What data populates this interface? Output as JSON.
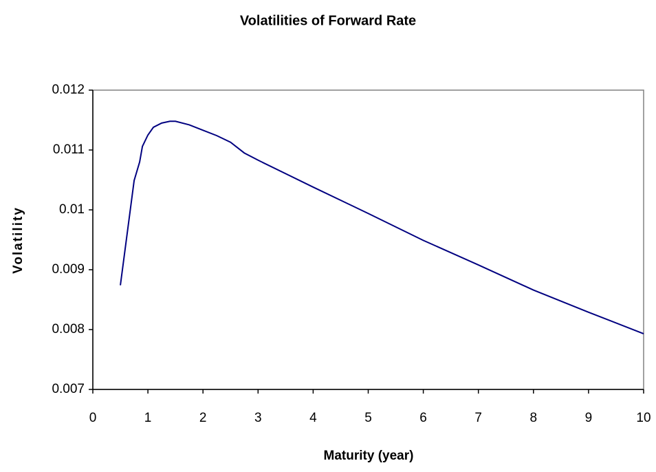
{
  "chart_data": {
    "type": "line",
    "title": "Volatilities of Forward Rate",
    "x_label": "Maturity (year)",
    "y_label": "Volatility",
    "x": [
      0.5,
      0.75,
      0.85,
      0.9,
      1.0,
      1.1,
      1.25,
      1.4,
      1.5,
      1.75,
      2,
      2.25,
      2.5,
      2.75,
      3,
      4,
      5,
      6,
      7,
      8,
      9,
      10
    ],
    "values": [
      0.00874,
      0.01049,
      0.0108,
      0.01106,
      0.01125,
      0.01138,
      0.01145,
      0.01148,
      0.01148,
      0.01142,
      0.01133,
      0.01124,
      0.01113,
      0.01095,
      0.01083,
      0.01038,
      0.00994,
      0.00949,
      0.00908,
      0.00866,
      0.00829,
      0.00793
    ],
    "color": "#000080",
    "xlim": [
      0,
      10
    ],
    "xticks": [
      0,
      1,
      2,
      3,
      4,
      5,
      6,
      7,
      8,
      9,
      10
    ],
    "ylim": [
      0.007,
      0.012
    ],
    "yticks": [
      0.007,
      0.008,
      0.009,
      0.01,
      0.011,
      0.012
    ]
  }
}
